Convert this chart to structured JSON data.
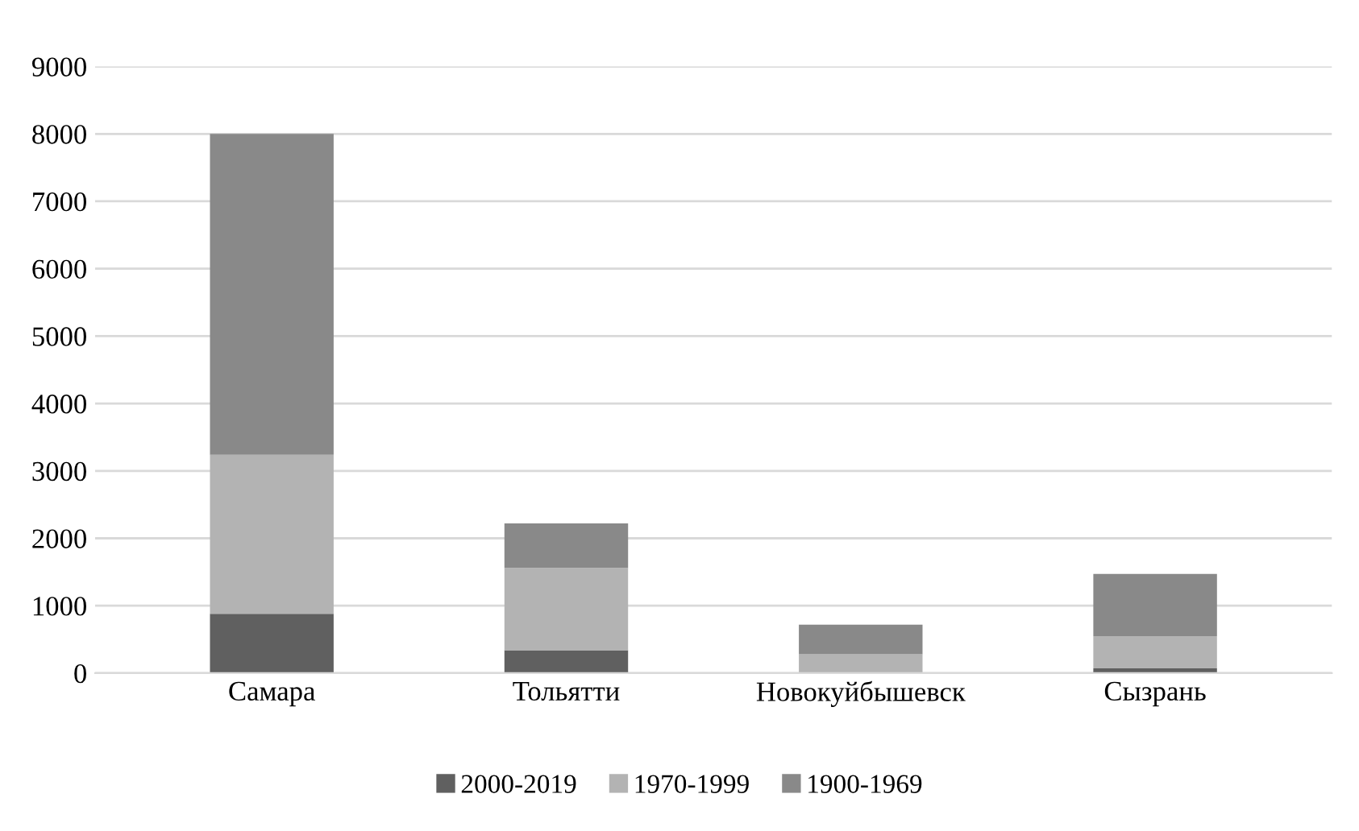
{
  "chart_data": {
    "type": "bar",
    "stacked": true,
    "categories": [
      "Самара",
      "Тольятти",
      "Новокуйбышевск",
      "Сызрань"
    ],
    "series": [
      {
        "name": "2000-2019",
        "color": "#606060",
        "values": [
          880,
          340,
          0,
          70
        ]
      },
      {
        "name": "1970-1999",
        "color": "#b3b3b3",
        "values": [
          2360,
          1220,
          280,
          480
        ]
      },
      {
        "name": "1900-1969",
        "color": "#898989",
        "values": [
          4760,
          660,
          440,
          920
        ]
      }
    ],
    "ylim": [
      0,
      9000
    ],
    "yticks": [
      0,
      1000,
      2000,
      3000,
      4000,
      5000,
      6000,
      7000,
      8000,
      9000
    ],
    "grid": "y",
    "legend": "bottom"
  }
}
